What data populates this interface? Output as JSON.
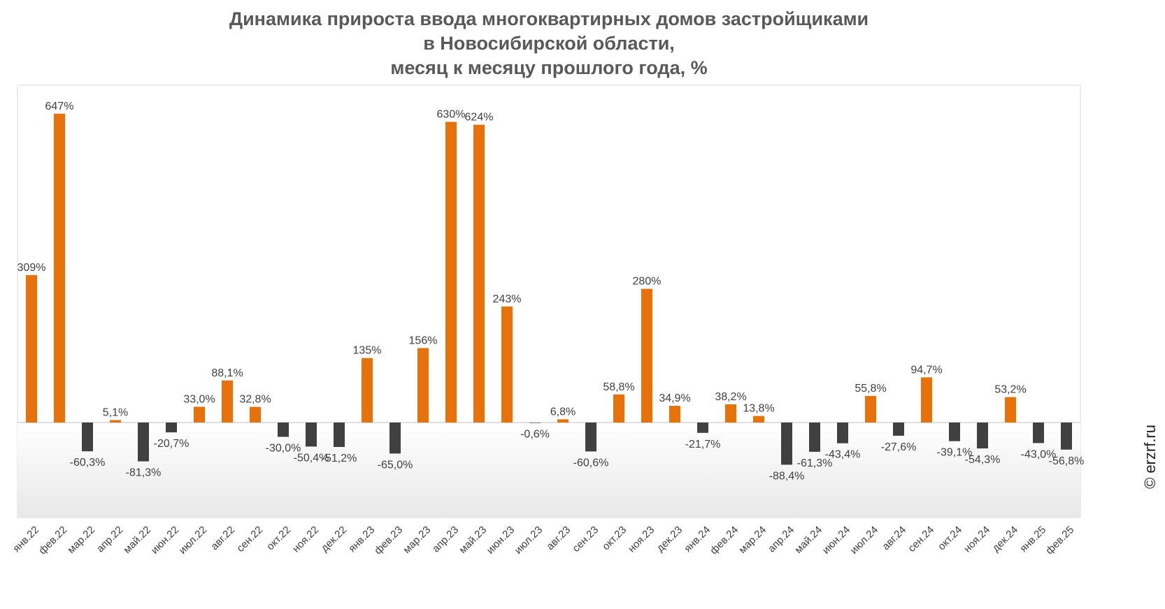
{
  "chart_data": {
    "type": "bar",
    "title_lines": [
      "Динамика прироста ввода многоквартирных домов застройщиками",
      "в Новосибирской области,",
      "месяц к месяцу прошлого года, %"
    ],
    "categories": [
      "янв.22",
      "фев.22",
      "мар.22",
      "апр.22",
      "май.22",
      "июн.22",
      "июл.22",
      "авг.22",
      "сен.22",
      "окт.22",
      "ноя.22",
      "дек.22",
      "янв.23",
      "фев.23",
      "мар.23",
      "апр.23",
      "май.23",
      "июн.23",
      "июл.23",
      "авг.23",
      "сен.23",
      "окт.23",
      "ноя.23",
      "дек.23",
      "янв.24",
      "фев.24",
      "мар.24",
      "апр.24",
      "май.24",
      "июн.24",
      "июл.24",
      "авг.24",
      "сен.24",
      "окт.24",
      "ноя.24",
      "дек.24",
      "янв.25",
      "фев.25"
    ],
    "values": [
      309,
      647,
      -60.3,
      5.1,
      -81.3,
      -20.7,
      33.0,
      88.1,
      32.8,
      -30.0,
      -50.4,
      -51.2,
      135,
      -65.0,
      156,
      630,
      624,
      243,
      -0.6,
      6.8,
      -60.6,
      58.8,
      280,
      34.9,
      -21.7,
      38.2,
      13.8,
      -88.4,
      -61.3,
      -43.4,
      55.8,
      -27.6,
      94.7,
      -39.1,
      -54.3,
      53.2,
      -43.0,
      -56.8
    ],
    "data_labels": [
      "309%",
      "647%",
      "-60,3%",
      "5,1%",
      "-81,3%",
      "-20,7%",
      "33,0%",
      "88,1%",
      "32,8%",
      "-30,0%",
      "-50,4%",
      "-51,2%",
      "135%",
      "-65,0%",
      "156%",
      "630%",
      "624%",
      "243%",
      "-0,6%",
      "6,8%",
      "-60,6%",
      "58,8%",
      "280%",
      "34,9%",
      "-21,7%",
      "38,2%",
      "13,8%",
      "-88,4%",
      "-61,3%",
      "-43,4%",
      "55,8%",
      "-27,6%",
      "94,7%",
      "-39,1%",
      "-54,3%",
      "53,2%",
      "-43,0%",
      "-56,8%"
    ],
    "ylim": [
      -200,
      700
    ],
    "xlabel": "",
    "ylabel": "",
    "grid": false,
    "legend": "none"
  },
  "colors": {
    "positive": "#e8710a",
    "negative": "#404040",
    "title": "#595959",
    "label": "#404040"
  },
  "watermark": "© erzrf.ru"
}
